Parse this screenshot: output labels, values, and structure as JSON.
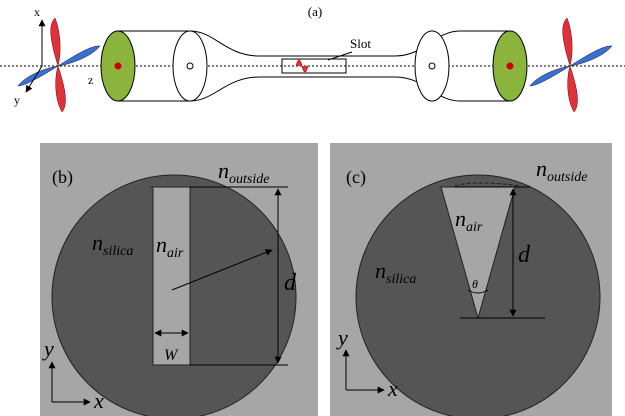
{
  "panel_a": {
    "label": "(a)",
    "axis_x": "x",
    "axis_y": "y",
    "axis_z": "z",
    "slot": "Slot"
  },
  "panel_b": {
    "label": "(b)",
    "n_outside": {
      "symbol": "n",
      "sub": "outside"
    },
    "n_silica": {
      "symbol": "n",
      "sub": "silica"
    },
    "n_air": {
      "symbol": "n",
      "sub": "air"
    },
    "depth": "d",
    "width": "W",
    "axis_y": "y",
    "axis_x": "x"
  },
  "panel_c": {
    "label": "(c)",
    "n_outside": {
      "symbol": "n",
      "sub": "outside"
    },
    "n_silica": {
      "symbol": "n",
      "sub": "silica"
    },
    "n_air": {
      "symbol": "n",
      "sub": "air"
    },
    "depth": "d",
    "angle": "θ",
    "axis_y": "y",
    "axis_x": "x"
  }
}
